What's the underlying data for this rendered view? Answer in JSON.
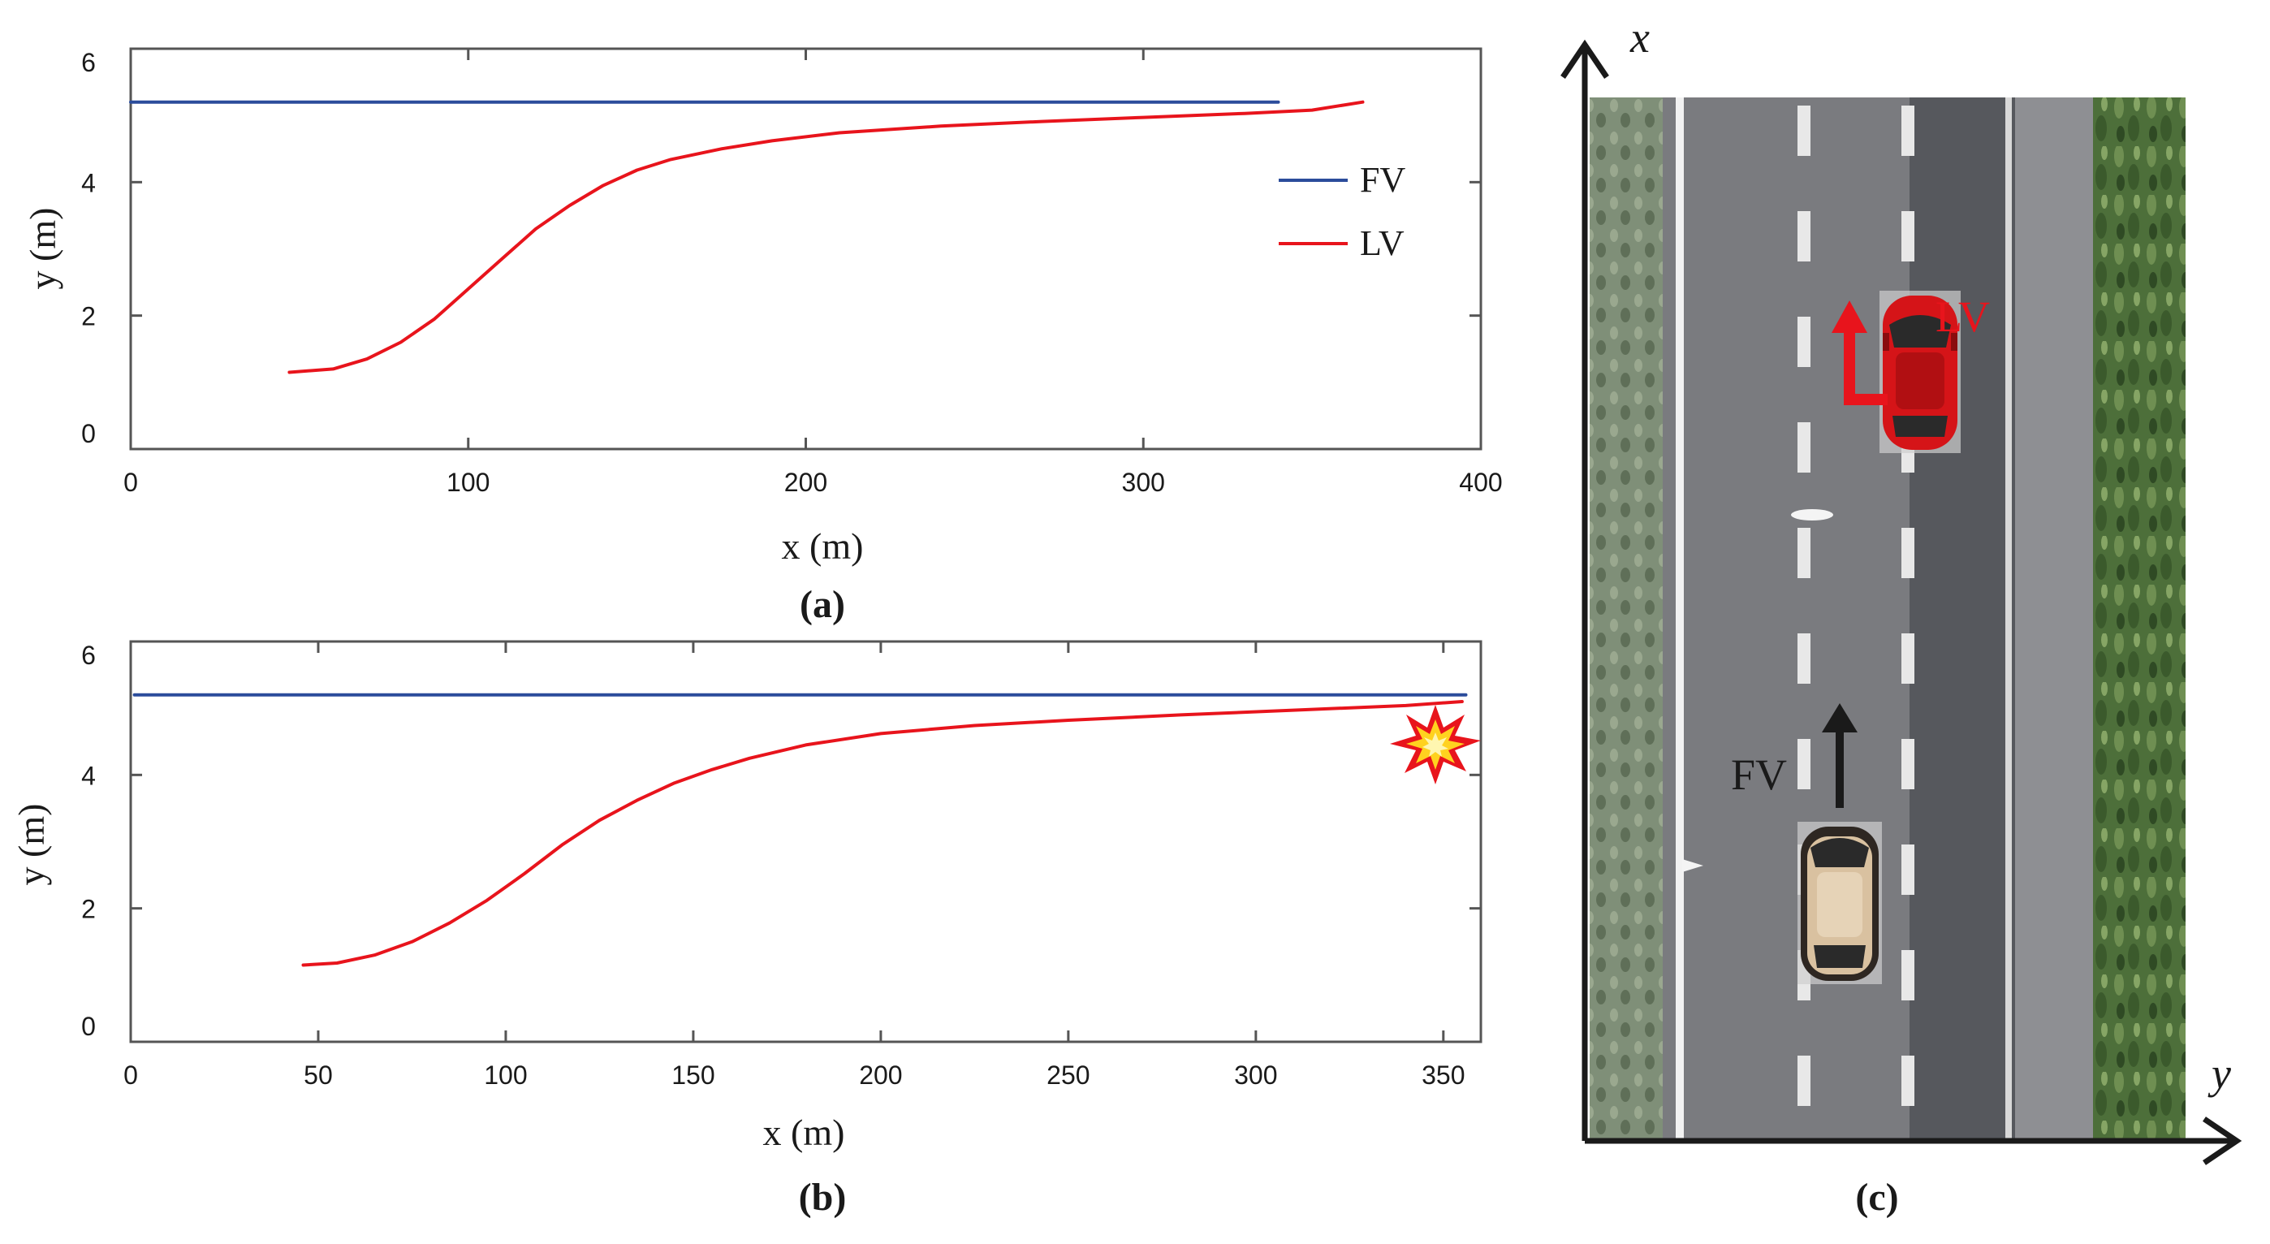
{
  "colors": {
    "fv": "#2B4C9B",
    "lv": "#E8141C",
    "axis": "#555555",
    "text": "#1a1a1a"
  },
  "chart_data": [
    {
      "panel": "a",
      "type": "line",
      "caption": "(a)",
      "xlabel": "x (m)",
      "ylabel": "y (m)",
      "xlim": [
        0,
        400
      ],
      "ylim": [
        0,
        6
      ],
      "xticks": [
        0,
        100,
        200,
        300,
        400
      ],
      "yticks": [
        0,
        2,
        4,
        6
      ],
      "legend": {
        "placement": "right",
        "entries": [
          "FV",
          "LV"
        ]
      },
      "series": [
        {
          "name": "FV",
          "x": [
            0,
            340
          ],
          "y": [
            5.2,
            5.2
          ]
        },
        {
          "name": "LV",
          "x": [
            47,
            60,
            70,
            80,
            90,
            100,
            110,
            120,
            130,
            140,
            150,
            160,
            175,
            190,
            210,
            240,
            270,
            300,
            330,
            350,
            365
          ],
          "y": [
            1.15,
            1.2,
            1.35,
            1.6,
            1.95,
            2.4,
            2.85,
            3.3,
            3.65,
            3.95,
            4.18,
            4.34,
            4.5,
            4.62,
            4.74,
            4.84,
            4.91,
            4.97,
            5.03,
            5.08,
            5.2
          ]
        }
      ]
    },
    {
      "panel": "b",
      "type": "line",
      "caption": "(b)",
      "xlabel": "x (m)",
      "ylabel": "y (m)",
      "xlim": [
        0,
        360
      ],
      "ylim": [
        0,
        6
      ],
      "xticks": [
        0,
        50,
        100,
        150,
        200,
        250,
        300,
        350
      ],
      "yticks": [
        0,
        2,
        4,
        6
      ],
      "annotation": "collision",
      "series": [
        {
          "name": "FV",
          "x": [
            1,
            356
          ],
          "y": [
            5.2,
            5.2
          ]
        },
        {
          "name": "LV",
          "x": [
            46,
            55,
            65,
            75,
            85,
            95,
            105,
            115,
            125,
            135,
            145,
            155,
            165,
            180,
            200,
            225,
            250,
            280,
            310,
            340,
            355
          ],
          "y": [
            1.15,
            1.18,
            1.3,
            1.5,
            1.78,
            2.12,
            2.52,
            2.95,
            3.32,
            3.62,
            3.88,
            4.08,
            4.25,
            4.45,
            4.62,
            4.74,
            4.82,
            4.9,
            4.97,
            5.04,
            5.1
          ]
        }
      ]
    }
  ],
  "diagram": {
    "caption": "(c)",
    "axis_x": "x",
    "axis_y": "y",
    "lv_label": "LV",
    "fv_label": "FV"
  }
}
